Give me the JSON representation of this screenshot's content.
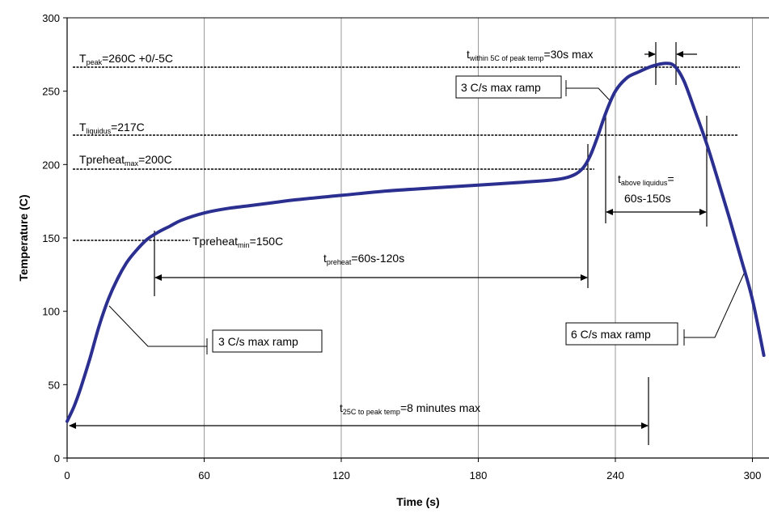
{
  "chart_data": {
    "type": "line",
    "xlabel": "Time (s)",
    "ylabel": "Temperature (C)",
    "xlim": [
      0,
      305
    ],
    "ylim": [
      0,
      300
    ],
    "x_ticks": [
      "0",
      "60",
      "120",
      "180",
      "240",
      "300"
    ],
    "y_ticks": [
      "0",
      "50",
      "100",
      "150",
      "200",
      "250",
      "300"
    ],
    "grid": "vertical",
    "line_color": "#2b2f8f",
    "series": [
      {
        "x": [
          0,
          3,
          6,
          10,
          14,
          18,
          22,
          26,
          30,
          35,
          40,
          45,
          50,
          60,
          70,
          80,
          90,
          100,
          120,
          140,
          160,
          180,
          200,
          215,
          222,
          226,
          229,
          232,
          236,
          240,
          245,
          250,
          256,
          262,
          266,
          270,
          275,
          280,
          285,
          290,
          295,
          300,
          305
        ],
        "y": [
          25,
          35,
          48,
          68,
          90,
          108,
          122,
          133,
          141,
          149,
          154,
          158,
          162,
          167,
          170,
          172,
          174,
          176,
          179,
          182,
          184,
          186,
          188,
          190,
          193,
          198,
          206,
          218,
          236,
          250,
          259,
          263,
          267,
          269,
          267,
          257,
          236,
          214,
          189,
          163,
          136,
          108,
          70
        ]
      }
    ],
    "annotations": {
      "tpeak_main": "T",
      "tpeak_sub": "peak",
      "tpeak_value": "=260C +0/-5C",
      "tliq_main": "T",
      "tliq_sub": "liquidus",
      "tliq_value": "=217C",
      "tpreheat_max_main": "Tpreheat",
      "tpreheat_max_sub": "max",
      "tpreheat_max_value": "=200C",
      "tpreheat_min_main": "Tpreheat",
      "tpreheat_min_sub": "min",
      "tpreheat_min_value": "=150C",
      "twithin_main": "t",
      "twithin_sub": "within 5C of peak temp",
      "twithin_value": "=30s max",
      "tabove_main": "t",
      "tabove_sub": "above liquidus",
      "tabove_value": "=",
      "tabove_line2": "60s-150s",
      "tpreheat_t_main": "t",
      "tpreheat_t_sub": "preheat",
      "tpreheat_t_value": "=60s-120s",
      "t25_main": "t",
      "t25_sub": "25C to peak temp",
      "t25_value": "=8 minutes max",
      "ramp_up_left": "3 C/s max ramp",
      "ramp_up_right": "3 C/s max ramp",
      "ramp_down": "6 C/s max ramp"
    }
  }
}
